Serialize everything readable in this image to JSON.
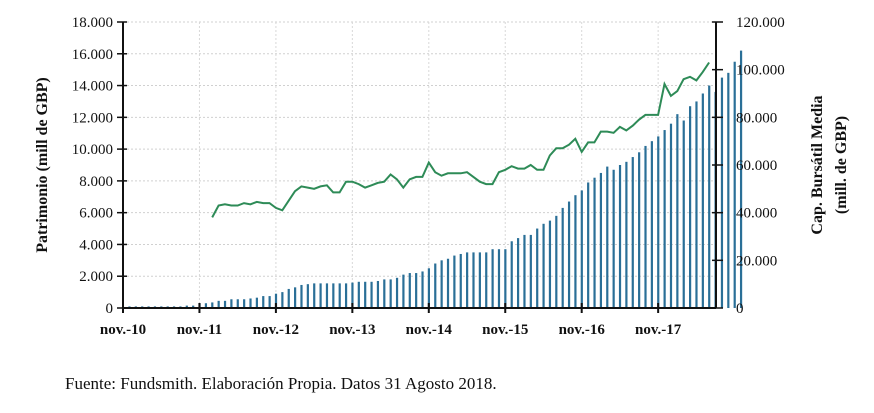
{
  "chart_data": {
    "type": "bar+line",
    "title": "",
    "x_ticks": [
      "nov.-10",
      "nov.-11",
      "nov.-12",
      "nov.-13",
      "nov.-14",
      "nov.-15",
      "nov.-16",
      "nov.-17"
    ],
    "y_left": {
      "label": "Patrimonio  (mill de GBP)",
      "ticks": [
        "0",
        "2.000",
        "4.000",
        "6.000",
        "8.000",
        "10.000",
        "12.000",
        "14.000",
        "16.000",
        "18.000"
      ],
      "range": [
        0,
        18000
      ]
    },
    "y_right": {
      "label_line1": "Cap. Bursátil Media",
      "label_line2": "(mill. de GBP)",
      "ticks": [
        "0",
        "20.000",
        "40.000",
        "60.000",
        "80.000",
        "100.000",
        "120.000"
      ],
      "range": [
        0,
        120000
      ]
    },
    "grid": true,
    "series": [
      {
        "name": "Patrimonio",
        "axis": "left",
        "kind": "bar",
        "color": "#2a6f97",
        "start_month": "2010-12",
        "values": [
          100,
          100,
          100,
          100,
          100,
          100,
          100,
          100,
          100,
          150,
          150,
          300,
          300,
          350,
          450,
          450,
          550,
          550,
          550,
          600,
          650,
          750,
          750,
          900,
          1000,
          1200,
          1300,
          1450,
          1500,
          1550,
          1550,
          1550,
          1550,
          1550,
          1550,
          1600,
          1650,
          1650,
          1650,
          1700,
          1800,
          1800,
          1900,
          2100,
          2200,
          2200,
          2300,
          2500,
          2800,
          3000,
          3100,
          3300,
          3400,
          3500,
          3500,
          3500,
          3500,
          3700,
          3700,
          3700,
          4200,
          4400,
          4600,
          4600,
          5000,
          5300,
          5500,
          5800,
          6300,
          6700,
          7100,
          7400,
          7900,
          8200,
          8500,
          8900,
          8700,
          9000,
          9200,
          9500,
          9800,
          10200,
          10500,
          10800,
          11200,
          11600,
          12200,
          11800,
          12700,
          13000,
          13500,
          14000,
          13600,
          14500,
          14800,
          15500,
          16200
        ]
      },
      {
        "name": "Cap. Bursátil Media",
        "axis": "right",
        "kind": "line",
        "color": "#2e8b57",
        "start_month": "2012-01",
        "values": [
          38000,
          43000,
          43500,
          43000,
          43000,
          44000,
          43500,
          44500,
          44000,
          44000,
          42000,
          41000,
          45000,
          49000,
          51000,
          50500,
          50000,
          51000,
          51500,
          48500,
          48500,
          53000,
          53000,
          52000,
          50500,
          51500,
          52500,
          53000,
          56000,
          54000,
          50500,
          54000,
          55000,
          55000,
          61000,
          57000,
          55500,
          56500,
          56500,
          56500,
          57000,
          55000,
          53000,
          52000,
          52000,
          57000,
          58000,
          59500,
          58500,
          58500,
          60000,
          58000,
          58000,
          64000,
          67000,
          67000,
          68500,
          71000,
          65500,
          69500,
          69500,
          74000,
          74000,
          73500,
          76000,
          74500,
          76500,
          79000,
          81000,
          81000,
          81000,
          94000,
          89000,
          91000,
          96000,
          97000,
          95500,
          99000,
          103000
        ]
      }
    ]
  },
  "footer": "Fuente: Fundsmith. Elaboración Propia. Datos 31 Agosto 2018."
}
